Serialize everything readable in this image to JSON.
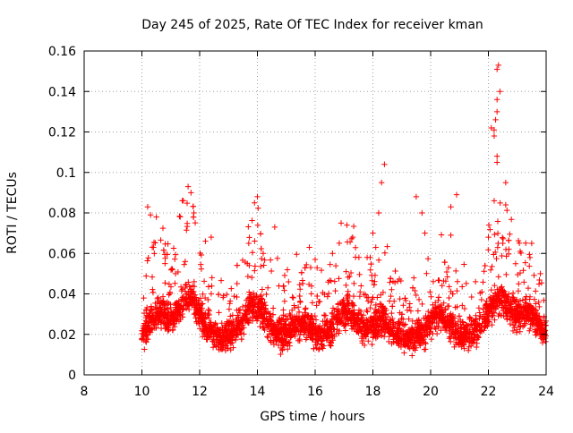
{
  "chart_data": {
    "type": "scatter",
    "title": "Day 245 of 2025, Rate Of TEC Index for receiver kman",
    "xlabel": "GPS time / hours",
    "ylabel": "ROTI / TECUs",
    "xlim": [
      8,
      24
    ],
    "ylim": [
      0,
      0.16
    ],
    "x_ticks": [
      8,
      10,
      12,
      14,
      16,
      18,
      20,
      22,
      24
    ],
    "x_tick_labels": [
      "8",
      "10",
      "12",
      "14",
      "16",
      "18",
      "20",
      "22",
      "24"
    ],
    "y_ticks": [
      0,
      0.02,
      0.04,
      0.06,
      0.08,
      0.1,
      0.12,
      0.14,
      0.16
    ],
    "y_tick_labels": [
      "0",
      "0.02",
      "0.04",
      "0.06",
      "0.08",
      "0.1",
      "0.12",
      "0.14",
      "0.16"
    ],
    "grid": true,
    "marker": "+",
    "marker_color": "#ff0000",
    "series": [
      {
        "name": "ROTI",
        "note": "dense cloud of points, baseline ~0.01-0.04 from 10 h to 24 h, with enhancements",
        "points": [
          [
            10.2,
            0.083
          ],
          [
            10.3,
            0.079
          ],
          [
            10.5,
            0.078
          ],
          [
            10.4,
            0.063
          ],
          [
            10.8,
            0.055
          ],
          [
            11.4,
            0.086
          ],
          [
            11.6,
            0.093
          ],
          [
            11.7,
            0.09
          ],
          [
            11.8,
            0.08
          ],
          [
            12.2,
            0.066
          ],
          [
            12.4,
            0.068
          ],
          [
            13.7,
            0.065
          ],
          [
            13.9,
            0.085
          ],
          [
            14.0,
            0.088
          ],
          [
            14.2,
            0.06
          ],
          [
            14.6,
            0.073
          ],
          [
            15.8,
            0.063
          ],
          [
            16.0,
            0.057
          ],
          [
            16.6,
            0.06
          ],
          [
            16.9,
            0.075
          ],
          [
            17.1,
            0.074
          ],
          [
            17.3,
            0.068
          ],
          [
            17.8,
            0.058
          ],
          [
            18.0,
            0.07
          ],
          [
            18.1,
            0.063
          ],
          [
            18.4,
            0.104
          ],
          [
            18.3,
            0.095
          ],
          [
            18.2,
            0.08
          ],
          [
            19.5,
            0.088
          ],
          [
            19.7,
            0.08
          ],
          [
            19.8,
            0.07
          ],
          [
            20.7,
            0.083
          ],
          [
            20.9,
            0.089
          ],
          [
            20.7,
            0.069
          ],
          [
            22.0,
            0.068
          ],
          [
            22.1,
            0.122
          ],
          [
            22.2,
            0.121
          ],
          [
            22.25,
            0.126
          ],
          [
            22.2,
            0.118
          ],
          [
            22.35,
            0.153
          ],
          [
            22.3,
            0.151
          ],
          [
            22.4,
            0.14
          ],
          [
            22.3,
            0.136
          ],
          [
            22.3,
            0.13
          ],
          [
            22.3,
            0.108
          ],
          [
            22.3,
            0.105
          ],
          [
            22.2,
            0.086
          ],
          [
            22.6,
            0.095
          ],
          [
            22.6,
            0.084
          ],
          [
            22.5,
            0.065
          ],
          [
            23.1,
            0.061
          ],
          [
            23.5,
            0.065
          ],
          [
            23.8,
            0.05
          ]
        ]
      }
    ]
  }
}
